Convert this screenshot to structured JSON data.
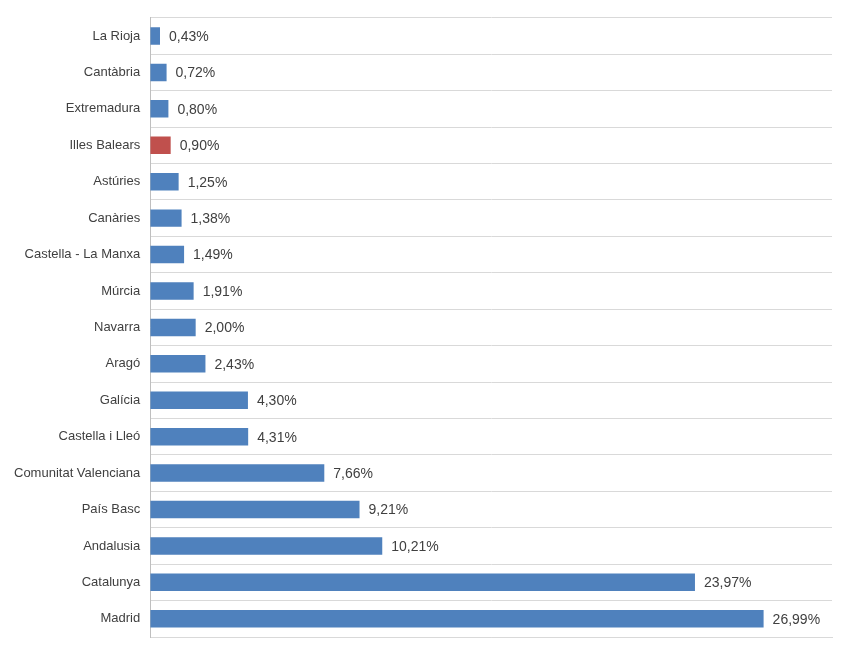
{
  "chart_data": {
    "type": "bar",
    "orientation": "horizontal",
    "categories": [
      "La Rioja",
      "Cantàbria",
      "Extremadura",
      "Illes Balears",
      "Astúries",
      "Canàries",
      "Castella - La Manxa",
      "Múrcia",
      "Navarra",
      "Aragó",
      "Galícia",
      "Castella i Lleó",
      "Comunitat Valenciana",
      "País Basc",
      "Andalusia",
      "Catalunya",
      "Madrid"
    ],
    "values": [
      0.43,
      0.72,
      0.8,
      0.9,
      1.25,
      1.38,
      1.49,
      1.91,
      2.0,
      2.43,
      4.3,
      4.31,
      7.66,
      9.21,
      10.21,
      23.97,
      26.99
    ],
    "value_labels": [
      "0,43%",
      "0,72%",
      "0,80%",
      "0,90%",
      "1,25%",
      "1,38%",
      "1,49%",
      "1,91%",
      "2,00%",
      "2,43%",
      "4,30%",
      "4,31%",
      "7,66%",
      "9,21%",
      "10,21%",
      "23,97%",
      "26,99%"
    ],
    "colors": [
      "#4f81bd",
      "#4f81bd",
      "#4f81bd",
      "#c0504d",
      "#4f81bd",
      "#4f81bd",
      "#4f81bd",
      "#4f81bd",
      "#4f81bd",
      "#4f81bd",
      "#4f81bd",
      "#4f81bd",
      "#4f81bd",
      "#4f81bd",
      "#4f81bd",
      "#4f81bd",
      "#4f81bd"
    ],
    "xlim": [
      0,
      30
    ],
    "data_labels": true,
    "tick_labels": "y",
    "grid": true
  }
}
